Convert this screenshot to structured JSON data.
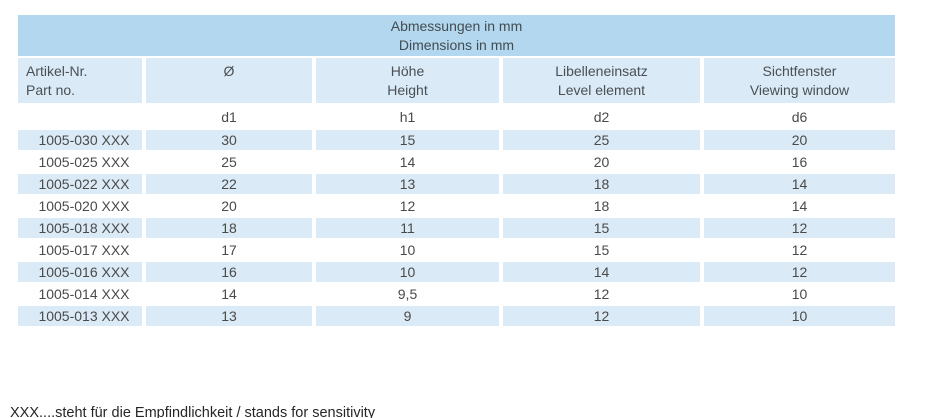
{
  "table": {
    "title": {
      "line1": "Abmessungen in mm",
      "line2": "Dimensions in mm"
    },
    "columns": [
      {
        "de": "Artikel-Nr.",
        "en": "Part no."
      },
      {
        "de": "Ø",
        "en": ""
      },
      {
        "de": "Höhe",
        "en": "Height"
      },
      {
        "de": "Libelleneinsatz",
        "en": "Level element"
      },
      {
        "de": "Sichtfenster",
        "en": "Viewing window"
      }
    ],
    "sub_headers": [
      "",
      "d1",
      "h1",
      "d2",
      "d6"
    ],
    "rows": [
      [
        "1005-030 XXX",
        "30",
        "15",
        "25",
        "20"
      ],
      [
        "1005-025 XXX",
        "25",
        "14",
        "20",
        "16"
      ],
      [
        "1005-022 XXX",
        "22",
        "13",
        "18",
        "14"
      ],
      [
        "1005-020 XXX",
        "20",
        "12",
        "18",
        "14"
      ],
      [
        "1005-018 XXX",
        "18",
        "11",
        "15",
        "12"
      ],
      [
        "1005-017 XXX",
        "17",
        "10",
        "15",
        "12"
      ],
      [
        "1005-016 XXX",
        "16",
        "10",
        "14",
        "12"
      ],
      [
        "1005-014 XXX",
        "14",
        "9,5",
        "12",
        "10"
      ],
      [
        "1005-013 XXX",
        "13",
        "9",
        "12",
        "10"
      ]
    ]
  },
  "footnote": "XXX....steht für die Empfindlichkeit / stands for sensitivity",
  "colors": {
    "header_blue": "#b2d7ee",
    "row_blue": "#daeaf6",
    "table_text": "#4a4a4a",
    "footnote_text": "#262626"
  }
}
